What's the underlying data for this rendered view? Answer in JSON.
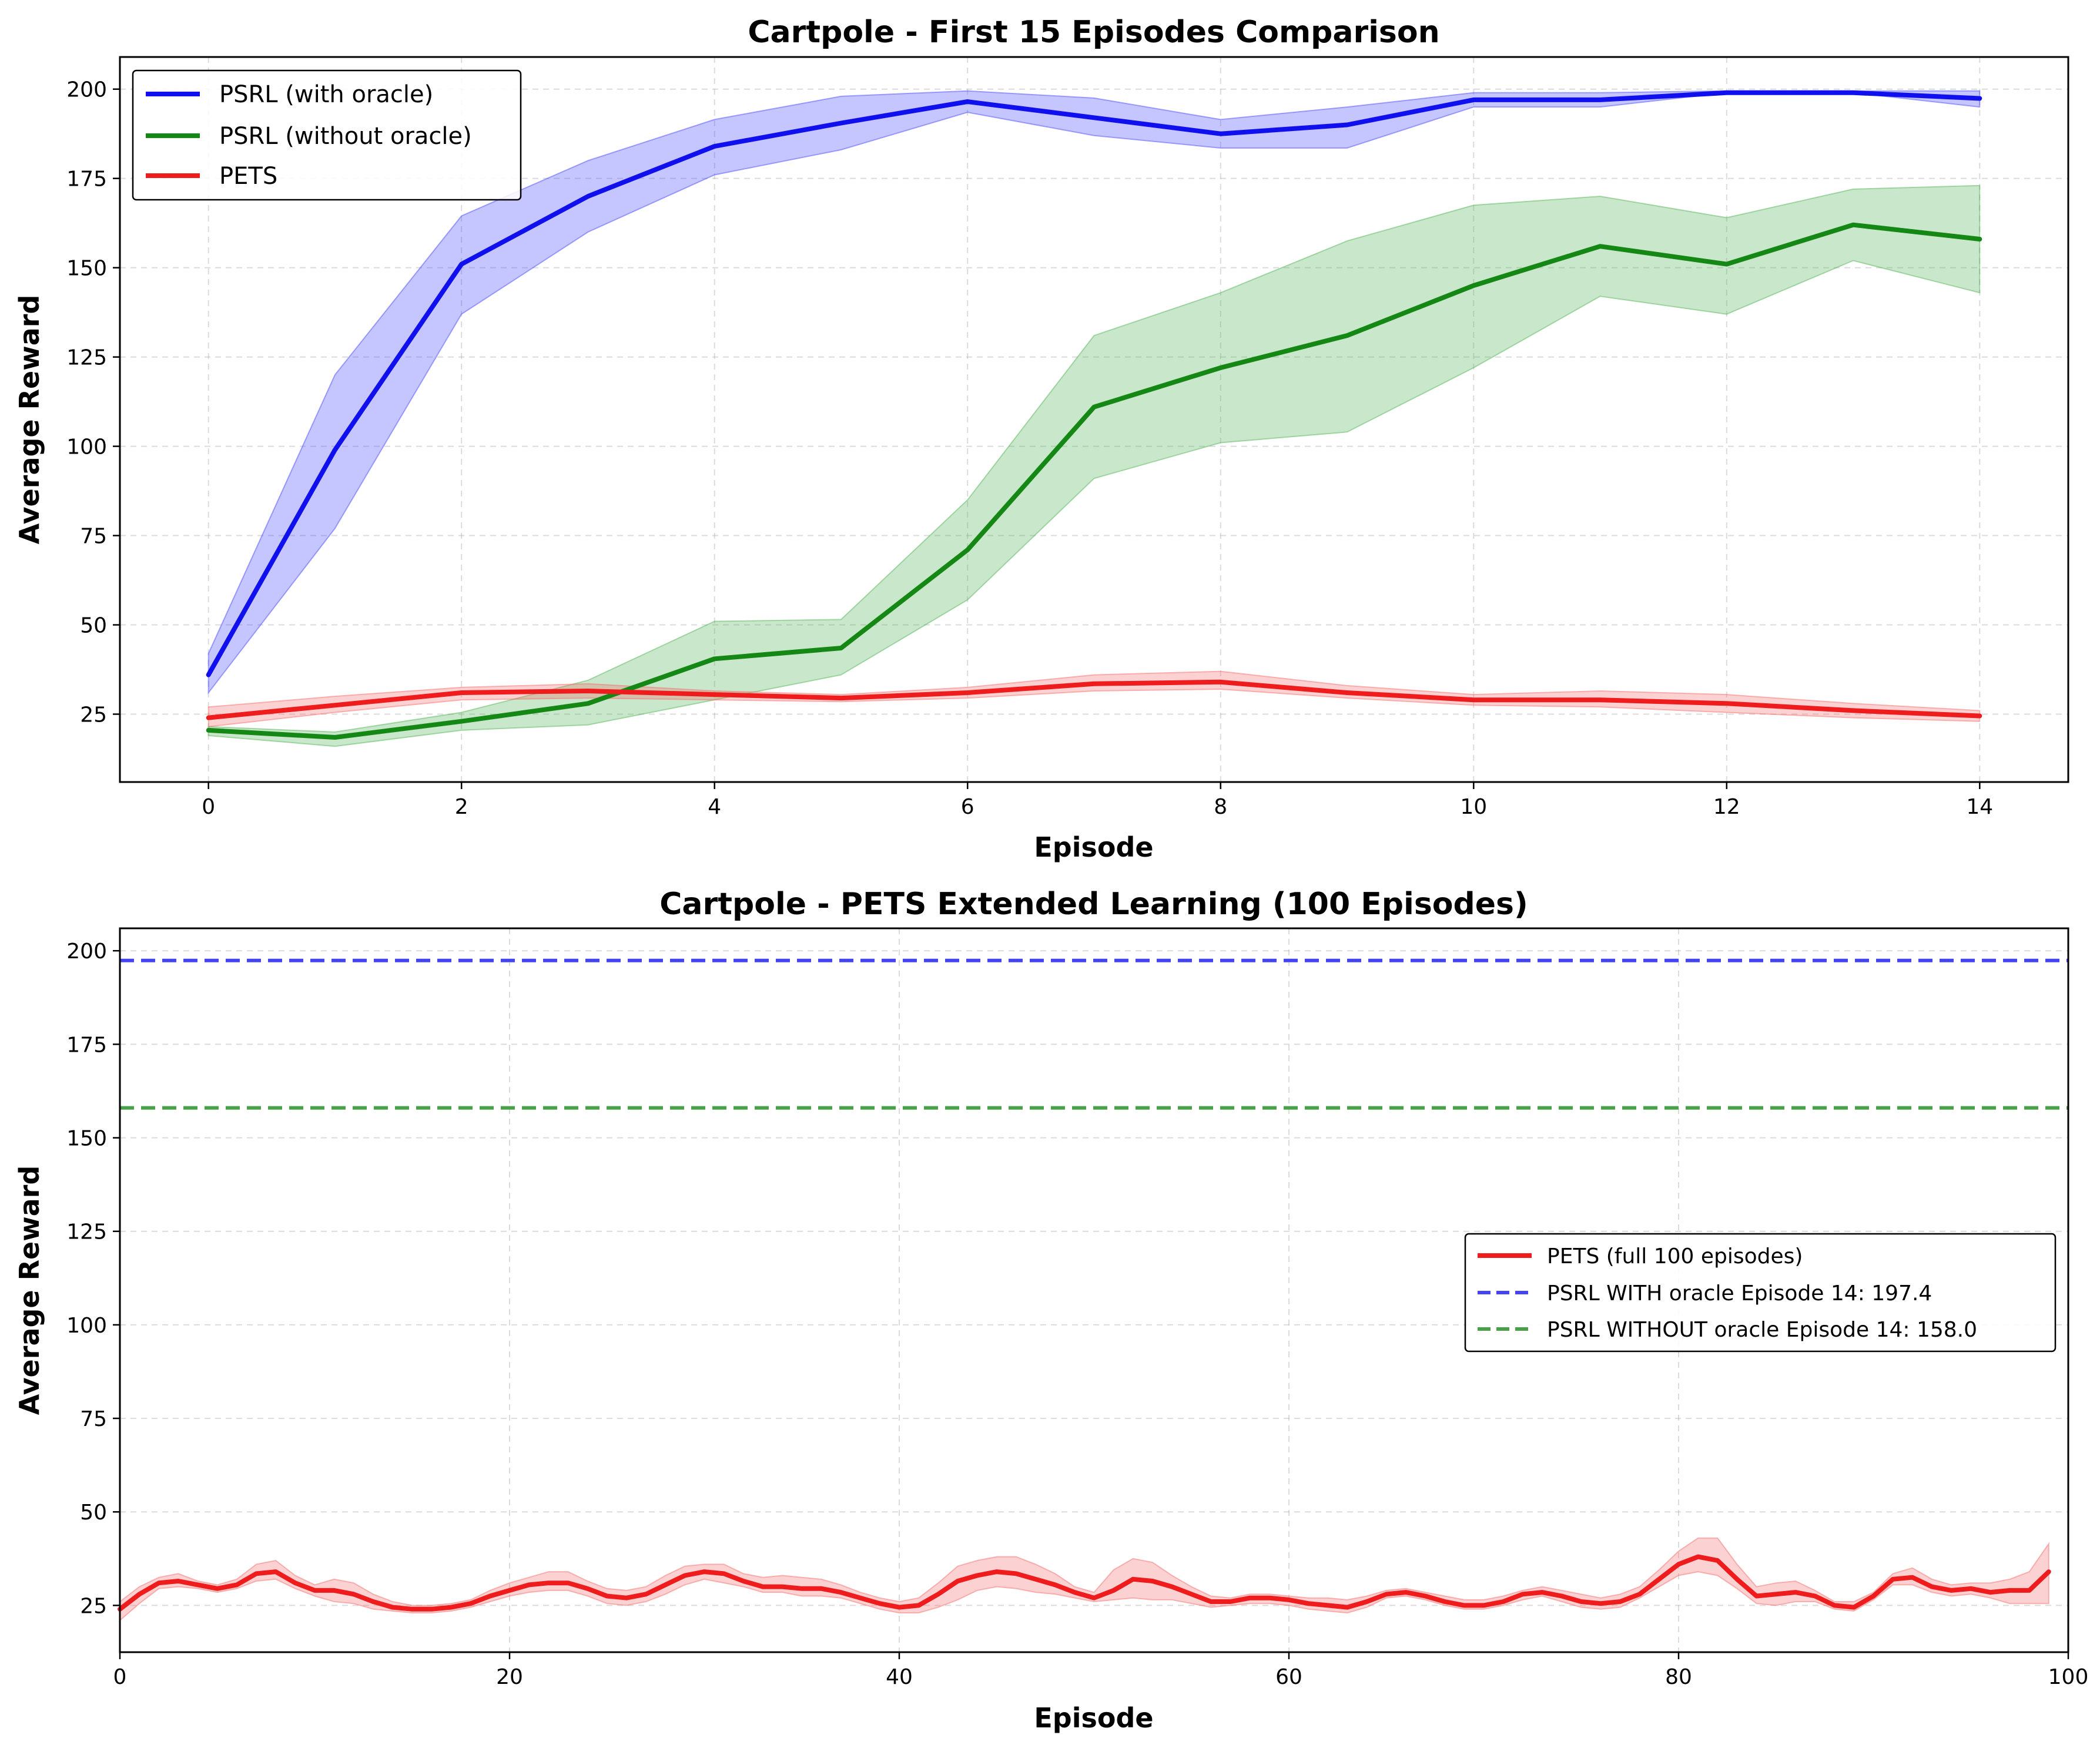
{
  "chart_data": [
    {
      "type": "line",
      "title": "Cartpole - First 15 Episodes Comparison",
      "xlabel": "Episode",
      "ylabel": "Average Reward",
      "xlim": [
        -0.7,
        14.7
      ],
      "ylim": [
        6,
        209
      ],
      "xticks": [
        0,
        2,
        4,
        6,
        8,
        10,
        12,
        14
      ],
      "yticks": [
        25,
        50,
        75,
        100,
        125,
        150,
        175,
        200
      ],
      "grid": true,
      "legend_position": "upper-left",
      "x": [
        0,
        1,
        2,
        3,
        4,
        5,
        6,
        7,
        8,
        9,
        10,
        11,
        12,
        13,
        14
      ],
      "series": [
        {
          "name": "PSRL (with oracle)",
          "color": "#1010ee",
          "fill_color": "#4040ff",
          "values": [
            36,
            99,
            151,
            170,
            184,
            190.5,
            196.5,
            192,
            187.5,
            190,
            197,
            197,
            199,
            199,
            197.4
          ],
          "lower": [
            31,
            77,
            137,
            160,
            176,
            183,
            193.5,
            187,
            183.5,
            183.5,
            195,
            195,
            199,
            199,
            195
          ],
          "upper": [
            42,
            120,
            164.5,
            180,
            191.5,
            198,
            199.5,
            197.5,
            191.5,
            195,
            199,
            199,
            199.5,
            199.5,
            199.5
          ]
        },
        {
          "name": "PSRL (without oracle)",
          "color": "#148714",
          "fill_color": "#4caf50",
          "values": [
            20.5,
            18.5,
            23,
            28,
            40.5,
            43.5,
            71,
            111,
            122,
            131,
            145,
            156,
            151,
            162,
            158
          ],
          "lower": [
            19,
            16,
            20.5,
            22,
            29,
            36,
            57,
            91,
            101,
            104,
            122,
            142,
            137,
            152,
            143
          ],
          "upper": [
            21.5,
            20,
            25.5,
            34.5,
            51,
            51.5,
            85,
            131,
            143,
            157.5,
            167.5,
            170,
            164,
            172,
            173
          ]
        },
        {
          "name": "PETS",
          "color": "#ee1c1c",
          "fill_color": "#f36666",
          "values": [
            24,
            27.5,
            31,
            31.5,
            30.5,
            29.5,
            31,
            33.5,
            34,
            31,
            29,
            29,
            28,
            26,
            24.5
          ],
          "lower": [
            21.5,
            25.5,
            29,
            29.5,
            29,
            28.5,
            29.5,
            31.5,
            32,
            29.5,
            27.5,
            27,
            25.5,
            24,
            23
          ],
          "upper": [
            27,
            30,
            32.5,
            33.5,
            31.5,
            30.5,
            32.5,
            36,
            37,
            33,
            30.5,
            31.5,
            30.5,
            28,
            26
          ]
        }
      ]
    },
    {
      "type": "line",
      "title": "Cartpole - PETS Extended Learning (100 Episodes)",
      "xlabel": "Episode",
      "ylabel": "Average Reward",
      "xlim": [
        0,
        100
      ],
      "ylim": [
        12.5,
        206
      ],
      "xticks": [
        0,
        20,
        40,
        60,
        80,
        100
      ],
      "yticks": [
        25,
        50,
        75,
        100,
        125,
        150,
        175,
        200
      ],
      "grid": true,
      "legend_position": "center-right",
      "series": [
        {
          "name": "PETS (full 100 episodes)",
          "color": "#ee1c1c",
          "fill_color": "#f36666",
          "x": [
            0,
            1,
            2,
            3,
            4,
            5,
            6,
            7,
            8,
            9,
            10,
            11,
            12,
            13,
            14,
            15,
            16,
            17,
            18,
            19,
            20,
            21,
            22,
            23,
            24,
            25,
            26,
            27,
            28,
            29,
            30,
            31,
            32,
            33,
            34,
            35,
            36,
            37,
            38,
            39,
            40,
            41,
            42,
            43,
            44,
            45,
            46,
            47,
            48,
            49,
            50,
            51,
            52,
            53,
            54,
            55,
            56,
            57,
            58,
            59,
            60,
            61,
            62,
            63,
            64,
            65,
            66,
            67,
            68,
            69,
            70,
            71,
            72,
            73,
            74,
            75,
            76,
            77,
            78,
            79,
            80,
            81,
            82,
            83,
            84,
            85,
            86,
            87,
            88,
            89,
            90,
            91,
            92,
            93,
            94,
            95,
            96,
            97,
            98,
            99
          ],
          "values": [
            24,
            28,
            31,
            31.5,
            30.5,
            29.5,
            30.5,
            33.5,
            34,
            31,
            29,
            29,
            28,
            26,
            24.5,
            24,
            24,
            24.5,
            25.5,
            27.5,
            29,
            30.5,
            31,
            31,
            29.5,
            27.5,
            27,
            28,
            30.5,
            33,
            34,
            33.5,
            31.5,
            30,
            30,
            29.5,
            29.5,
            28.5,
            27,
            25.5,
            24.5,
            25,
            28,
            31.5,
            33,
            34,
            33.5,
            32,
            30.5,
            28.5,
            27,
            29,
            32,
            31.5,
            30,
            28,
            26,
            26,
            27,
            27,
            26.5,
            25.5,
            25,
            24.5,
            26,
            28,
            28.5,
            27.5,
            26,
            25,
            25,
            26,
            28,
            28.5,
            27.5,
            26,
            25.5,
            26,
            28,
            32,
            36,
            38,
            37,
            32,
            27.5,
            28,
            28.5,
            27.5,
            25,
            24.5,
            27.5,
            32,
            32.5,
            30,
            29,
            29.5,
            28.5,
            29,
            29,
            34
          ],
          "lower": [
            21,
            25.5,
            29.5,
            30,
            29.5,
            28.5,
            29.5,
            31.5,
            32,
            29.5,
            27.5,
            26,
            25.5,
            24,
            23.5,
            23,
            23,
            23.5,
            24.5,
            26,
            27.5,
            28.5,
            29,
            29,
            27.5,
            25.5,
            25,
            26,
            28,
            30.5,
            32,
            31,
            30,
            28.5,
            28.5,
            27.5,
            27.5,
            27,
            25.5,
            24,
            23,
            23,
            24.5,
            26.5,
            29,
            30,
            29.5,
            28.5,
            28,
            27,
            26,
            26.5,
            27,
            26.5,
            26.5,
            25.5,
            24.5,
            25,
            25.5,
            25.5,
            25,
            24,
            23.5,
            23,
            24.5,
            27,
            27.5,
            26.5,
            25,
            24,
            24,
            25,
            26.5,
            27.5,
            26,
            24.5,
            24,
            24.5,
            27,
            30,
            33,
            34,
            33,
            29.5,
            25.5,
            25,
            26,
            26,
            24,
            23.5,
            26.5,
            30.5,
            30.5,
            28.5,
            27.5,
            28,
            27,
            25.5,
            25.5,
            25.5
          ],
          "upper": [
            26,
            30,
            32.5,
            33.5,
            31.5,
            30.5,
            32,
            36,
            37,
            33,
            30.5,
            32,
            31,
            28,
            26,
            25,
            25,
            25.5,
            26.5,
            29,
            31,
            32.5,
            34,
            34,
            31.5,
            29.5,
            29,
            30,
            33,
            35.5,
            36,
            36,
            33.5,
            32.5,
            33,
            32.5,
            32,
            30.5,
            28.5,
            27,
            26,
            27,
            31,
            35.5,
            37,
            38,
            38,
            36,
            33.5,
            30,
            28.5,
            34.5,
            37.5,
            36.5,
            33,
            30,
            27.5,
            27,
            28,
            28,
            27.5,
            27,
            27,
            26.5,
            27.5,
            29,
            29.5,
            28.5,
            27.5,
            26.5,
            26.5,
            27.5,
            29,
            30,
            29,
            28,
            27,
            28,
            30,
            34.5,
            39.5,
            43,
            43,
            36,
            30,
            31,
            31.5,
            29,
            26,
            26,
            28.5,
            33.5,
            35,
            32,
            30.5,
            31,
            31,
            32,
            34,
            41.5
          ]
        },
        {
          "name": "PSRL WITH oracle Episode 14: 197.4",
          "style": "dashed-hline",
          "color": "#4444f0",
          "y": 197.4
        },
        {
          "name": "PSRL WITHOUT oracle Episode 14: 158.0",
          "style": "dashed-hline",
          "color": "#48a048",
          "y": 158.0
        }
      ]
    }
  ]
}
